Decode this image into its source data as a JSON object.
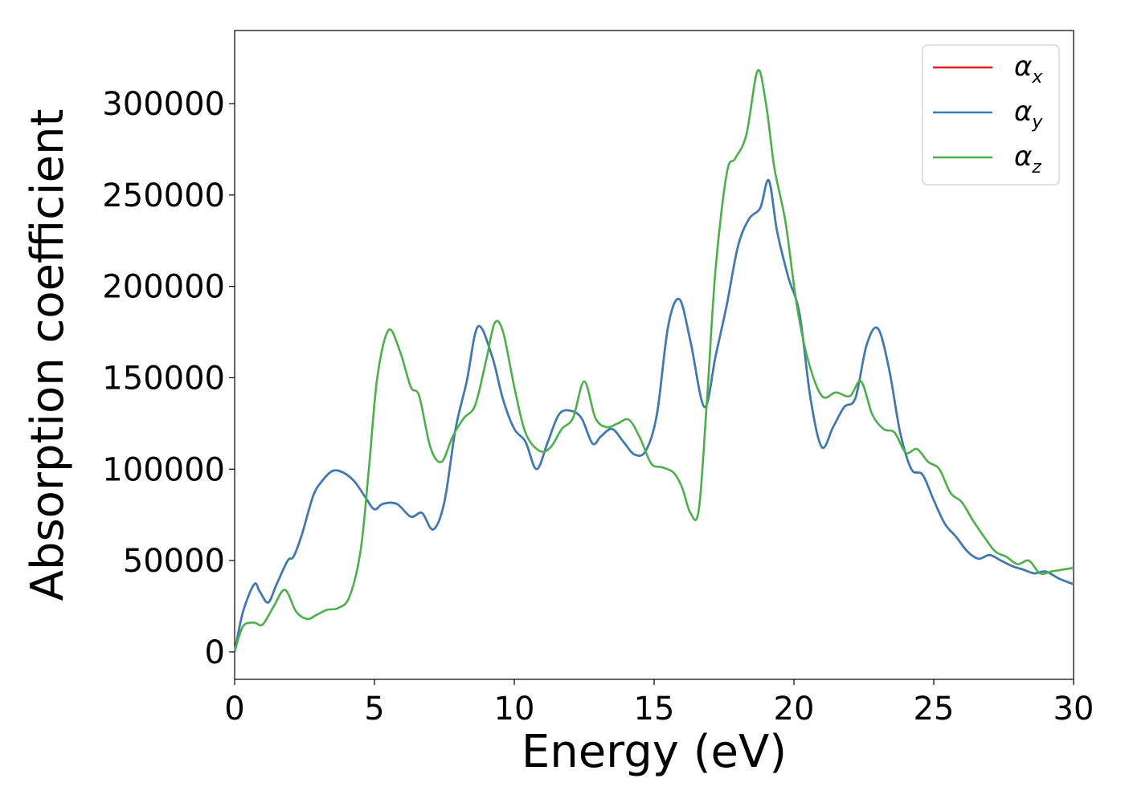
{
  "chart_data": {
    "type": "line",
    "xlabel": "Energy (eV)",
    "ylabel": "Absorption coefficient",
    "xlim": [
      0,
      30
    ],
    "ylim": [
      -15000,
      340000
    ],
    "xticks": [
      0,
      5,
      10,
      15,
      20,
      25,
      30
    ],
    "yticks": [
      0,
      50000,
      100000,
      150000,
      200000,
      250000,
      300000
    ],
    "grid": false,
    "legend_position": "top-right",
    "series": [
      {
        "name": "αx",
        "base": "α",
        "sub": "x",
        "color": "#e41a1c",
        "x": [
          0,
          0.3,
          0.7,
          0.9,
          1.2,
          1.5,
          1.9,
          2.1,
          2.4,
          2.8,
          3.1,
          3.5,
          3.9,
          4.3,
          4.7,
          5.0,
          5.3,
          5.8,
          6.3,
          6.7,
          7.1,
          7.5,
          7.9,
          8.3,
          8.7,
          9.2,
          9.6,
          10.0,
          10.4,
          10.8,
          11.2,
          11.6,
          12.0,
          12.4,
          12.8,
          13.1,
          13.5,
          13.9,
          14.3,
          14.7,
          15.1,
          15.5,
          15.9,
          16.3,
          16.8,
          17.2,
          17.6,
          18.0,
          18.4,
          18.8,
          19.1,
          19.4,
          19.8,
          20.2,
          20.6,
          21.0,
          21.4,
          21.8,
          22.2,
          22.6,
          23.0,
          23.4,
          23.8,
          24.2,
          24.6,
          25.0,
          25.4,
          25.8,
          26.2,
          26.6,
          27.0,
          27.4,
          27.8,
          28.2,
          28.6,
          29.0,
          29.5,
          30.0
        ],
        "y": [
          0,
          22000,
          37000,
          33000,
          27000,
          37000,
          50000,
          52000,
          64000,
          85000,
          93000,
          99000,
          98000,
          93000,
          84000,
          78000,
          81000,
          81000,
          74000,
          76000,
          67000,
          82000,
          122000,
          148000,
          178000,
          162000,
          138000,
          122000,
          115000,
          100000,
          115000,
          130000,
          132000,
          128000,
          114000,
          118000,
          122000,
          115000,
          108000,
          110000,
          130000,
          178000,
          193000,
          170000,
          134000,
          162000,
          190000,
          222000,
          237000,
          243000,
          258000,
          230000,
          205000,
          185000,
          138000,
          112000,
          123000,
          134000,
          139000,
          168000,
          177000,
          155000,
          120000,
          100000,
          97000,
          83000,
          70000,
          63000,
          55000,
          51000,
          53000,
          50000,
          47000,
          45000,
          43000,
          44000,
          40000,
          37000
        ]
      },
      {
        "name": "αy",
        "base": "α",
        "sub": "y",
        "color": "#377eb8",
        "x": [
          0,
          0.3,
          0.7,
          0.9,
          1.2,
          1.5,
          1.9,
          2.1,
          2.4,
          2.8,
          3.1,
          3.5,
          3.9,
          4.3,
          4.7,
          5.0,
          5.3,
          5.8,
          6.3,
          6.7,
          7.1,
          7.5,
          7.9,
          8.3,
          8.7,
          9.2,
          9.6,
          10.0,
          10.4,
          10.8,
          11.2,
          11.6,
          12.0,
          12.4,
          12.8,
          13.1,
          13.5,
          13.9,
          14.3,
          14.7,
          15.1,
          15.5,
          15.9,
          16.3,
          16.8,
          17.2,
          17.6,
          18.0,
          18.4,
          18.8,
          19.1,
          19.4,
          19.8,
          20.2,
          20.6,
          21.0,
          21.4,
          21.8,
          22.2,
          22.6,
          23.0,
          23.4,
          23.8,
          24.2,
          24.6,
          25.0,
          25.4,
          25.8,
          26.2,
          26.6,
          27.0,
          27.4,
          27.8,
          28.2,
          28.6,
          29.0,
          29.5,
          30.0
        ],
        "y": [
          0,
          22000,
          37000,
          33000,
          27000,
          37000,
          50000,
          52000,
          64000,
          85000,
          93000,
          99000,
          98000,
          93000,
          84000,
          78000,
          81000,
          81000,
          74000,
          76000,
          67000,
          82000,
          122000,
          148000,
          178000,
          162000,
          138000,
          122000,
          115000,
          100000,
          115000,
          130000,
          132000,
          128000,
          114000,
          118000,
          122000,
          115000,
          108000,
          110000,
          130000,
          178000,
          193000,
          170000,
          134000,
          162000,
          190000,
          222000,
          237000,
          243000,
          258000,
          230000,
          205000,
          185000,
          138000,
          112000,
          123000,
          134000,
          139000,
          168000,
          177000,
          155000,
          120000,
          100000,
          97000,
          83000,
          70000,
          63000,
          55000,
          51000,
          53000,
          50000,
          47000,
          45000,
          43000,
          44000,
          40000,
          37000
        ]
      },
      {
        "name": "αz",
        "base": "α",
        "sub": "z",
        "color": "#4daf4a",
        "x": [
          0,
          0.3,
          0.7,
          1.0,
          1.4,
          1.8,
          2.2,
          2.6,
          2.9,
          3.3,
          3.7,
          4.1,
          4.5,
          4.8,
          5.1,
          5.5,
          5.9,
          6.3,
          6.6,
          7.0,
          7.4,
          7.8,
          8.2,
          8.6,
          9.0,
          9.3,
          9.6,
          10.0,
          10.4,
          10.9,
          11.3,
          11.7,
          12.1,
          12.5,
          12.9,
          13.3,
          13.7,
          14.1,
          14.5,
          14.9,
          15.3,
          15.7,
          16.0,
          16.3,
          16.6,
          16.9,
          17.2,
          17.6,
          17.9,
          18.3,
          18.7,
          19.0,
          19.3,
          19.7,
          20.1,
          20.5,
          21.0,
          21.5,
          22.0,
          22.4,
          22.8,
          23.2,
          23.6,
          24.0,
          24.4,
          24.8,
          25.2,
          25.6,
          26.0,
          26.4,
          26.8,
          27.2,
          27.6,
          28.0,
          28.4,
          28.8,
          29.2,
          29.6,
          30.0
        ],
        "y": [
          0,
          14000,
          16000,
          15000,
          25000,
          34000,
          22000,
          18000,
          20000,
          23000,
          24000,
          30000,
          55000,
          100000,
          150000,
          176000,
          165000,
          145000,
          140000,
          112000,
          104000,
          118000,
          128000,
          135000,
          160000,
          180000,
          175000,
          145000,
          120000,
          110000,
          112000,
          122000,
          128000,
          148000,
          128000,
          123000,
          125000,
          127000,
          117000,
          103000,
          101000,
          98000,
          90000,
          76000,
          78000,
          140000,
          210000,
          262000,
          270000,
          283000,
          318000,
          300000,
          265000,
          235000,
          190000,
          160000,
          140000,
          142000,
          140000,
          148000,
          130000,
          122000,
          120000,
          109000,
          111000,
          104000,
          100000,
          87000,
          82000,
          72000,
          63000,
          55000,
          52000,
          48000,
          50000,
          43000,
          44000,
          45000,
          46000
        ]
      }
    ]
  }
}
